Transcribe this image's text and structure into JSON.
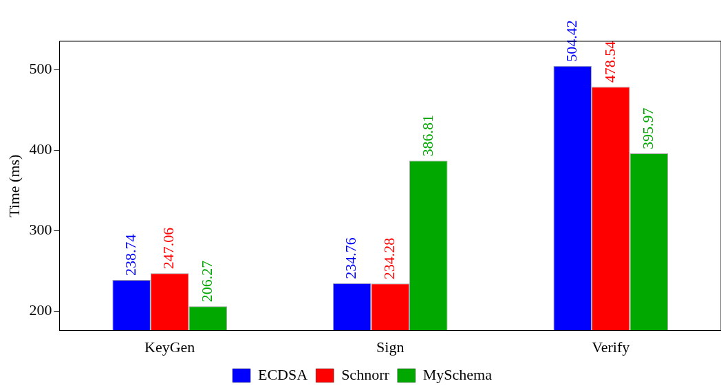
{
  "chart_data": {
    "type": "bar",
    "ylabel": "Time (ms)",
    "categories": [
      "KeyGen",
      "Sign",
      "Verify"
    ],
    "series": [
      {
        "name": "ECDSA",
        "color": "#0000ff",
        "values": [
          238.74,
          234.76,
          504.42
        ]
      },
      {
        "name": "Schnorr",
        "color": "#ff0000",
        "values": [
          247.06,
          234.28,
          478.54
        ]
      },
      {
        "name": "MySchema",
        "color": "#00a800",
        "values": [
          206.27,
          386.81,
          395.97
        ]
      }
    ],
    "ylim": [
      176,
      535
    ],
    "yticks": [
      200,
      300,
      400,
      500
    ],
    "grid": false,
    "legend": "bottom",
    "data_labels": true
  }
}
